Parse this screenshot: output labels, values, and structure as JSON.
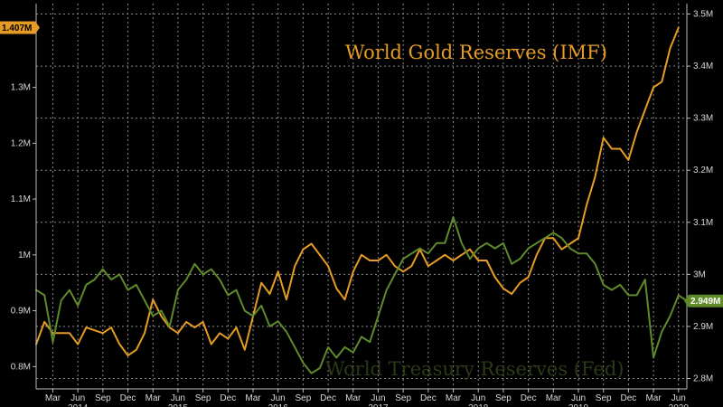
{
  "chart_data": {
    "type": "line",
    "x_ticks": [
      "Mar",
      "Jun",
      "Sep",
      "Dec",
      "Mar",
      "Jun",
      "Sep",
      "Dec",
      "Mar",
      "Jun",
      "Sep",
      "Dec",
      "Mar",
      "Jun",
      "Sep",
      "Dec",
      "Mar",
      "Jun",
      "Sep",
      "Dec",
      "Mar",
      "Jun",
      "Sep",
      "Dec",
      "Mar",
      "Jun"
    ],
    "x_year_labels": [
      "2014",
      "2015",
      "2016",
      "2017",
      "2018",
      "2019",
      "2020"
    ],
    "xlim": [
      "2014-01",
      "2020-07"
    ],
    "left_axis": {
      "ticks": [
        "0.8M",
        "0.9M",
        "1M",
        "1.1M",
        "1.2M",
        "1.3M"
      ],
      "tick_values": [
        0.8,
        0.9,
        1.0,
        1.1,
        1.2,
        1.3
      ],
      "ylim": [
        0.76,
        1.45
      ]
    },
    "right_axis": {
      "ticks": [
        "2.8M",
        "2.9M",
        "3M",
        "3.1M",
        "3.2M",
        "3.3M",
        "3.4M",
        "3.5M"
      ],
      "tick_values": [
        2.8,
        2.9,
        3.0,
        3.1,
        3.2,
        3.3,
        3.4,
        3.5
      ],
      "ylim": [
        2.78,
        3.52
      ]
    },
    "grid": true,
    "series": [
      {
        "name": "World Gold Reserves (IMF)",
        "axis": "left",
        "color": "#e69c24",
        "last_value_label": "1.407M",
        "points": [
          [
            "2014-01",
            0.84
          ],
          [
            "2014-02",
            0.88
          ],
          [
            "2014-03",
            0.86
          ],
          [
            "2014-05",
            0.86
          ],
          [
            "2014-06",
            0.84
          ],
          [
            "2014-07",
            0.87
          ],
          [
            "2014-09",
            0.86
          ],
          [
            "2014-10",
            0.87
          ],
          [
            "2014-11",
            0.84
          ],
          [
            "2014-12",
            0.82
          ],
          [
            "2015-01",
            0.83
          ],
          [
            "2015-02",
            0.86
          ],
          [
            "2015-03",
            0.92
          ],
          [
            "2015-04",
            0.89
          ],
          [
            "2015-05",
            0.87
          ],
          [
            "2015-06",
            0.86
          ],
          [
            "2015-07",
            0.88
          ],
          [
            "2015-08",
            0.87
          ],
          [
            "2015-09",
            0.88
          ],
          [
            "2015-10",
            0.84
          ],
          [
            "2015-11",
            0.86
          ],
          [
            "2015-12",
            0.85
          ],
          [
            "2016-01",
            0.87
          ],
          [
            "2016-02",
            0.83
          ],
          [
            "2016-03",
            0.89
          ],
          [
            "2016-04",
            0.95
          ],
          [
            "2016-05",
            0.93
          ],
          [
            "2016-06",
            0.97
          ],
          [
            "2016-07",
            0.92
          ],
          [
            "2016-08",
            0.98
          ],
          [
            "2016-09",
            1.01
          ],
          [
            "2016-10",
            1.02
          ],
          [
            "2016-11",
            1.0
          ],
          [
            "2016-12",
            0.98
          ],
          [
            "2017-01",
            0.94
          ],
          [
            "2017-02",
            0.92
          ],
          [
            "2017-03",
            0.97
          ],
          [
            "2017-04",
            1.0
          ],
          [
            "2017-05",
            0.99
          ],
          [
            "2017-06",
            0.99
          ],
          [
            "2017-07",
            1.0
          ],
          [
            "2017-08",
            0.98
          ],
          [
            "2017-09",
            0.97
          ],
          [
            "2017-10",
            0.98
          ],
          [
            "2017-11",
            1.01
          ],
          [
            "2017-12",
            0.98
          ],
          [
            "2018-01",
            0.99
          ],
          [
            "2018-02",
            1.0
          ],
          [
            "2018-03",
            0.99
          ],
          [
            "2018-04",
            1.0
          ],
          [
            "2018-05",
            1.01
          ],
          [
            "2018-06",
            0.99
          ],
          [
            "2018-07",
            0.99
          ],
          [
            "2018-08",
            0.96
          ],
          [
            "2018-09",
            0.94
          ],
          [
            "2018-10",
            0.93
          ],
          [
            "2018-11",
            0.95
          ],
          [
            "2018-12",
            0.96
          ],
          [
            "2019-01",
            1.0
          ],
          [
            "2019-02",
            1.03
          ],
          [
            "2019-03",
            1.03
          ],
          [
            "2019-04",
            1.01
          ],
          [
            "2019-05",
            1.02
          ],
          [
            "2019-06",
            1.03
          ],
          [
            "2019-07",
            1.09
          ],
          [
            "2019-08",
            1.14
          ],
          [
            "2019-09",
            1.21
          ],
          [
            "2019-10",
            1.19
          ],
          [
            "2019-11",
            1.19
          ],
          [
            "2019-12",
            1.17
          ],
          [
            "2020-01",
            1.22
          ],
          [
            "2020-02",
            1.26
          ],
          [
            "2020-03",
            1.3
          ],
          [
            "2020-04",
            1.31
          ],
          [
            "2020-05",
            1.37
          ],
          [
            "2020-06",
            1.407
          ]
        ]
      },
      {
        "name": "World Treasury Reserves (Fed)",
        "axis": "right",
        "color": "#5f8a2a",
        "last_value_label": "2.949M",
        "points": [
          [
            "2014-01",
            2.97
          ],
          [
            "2014-02",
            2.96
          ],
          [
            "2014-03",
            2.87
          ],
          [
            "2014-04",
            2.95
          ],
          [
            "2014-05",
            2.97
          ],
          [
            "2014-06",
            2.94
          ],
          [
            "2014-07",
            2.98
          ],
          [
            "2014-08",
            2.99
          ],
          [
            "2014-09",
            3.01
          ],
          [
            "2014-10",
            2.99
          ],
          [
            "2014-11",
            3.0
          ],
          [
            "2014-12",
            2.97
          ],
          [
            "2015-01",
            2.98
          ],
          [
            "2015-02",
            2.95
          ],
          [
            "2015-03",
            2.92
          ],
          [
            "2015-04",
            2.93
          ],
          [
            "2015-05",
            2.9
          ],
          [
            "2015-06",
            2.97
          ],
          [
            "2015-07",
            2.99
          ],
          [
            "2015-08",
            3.02
          ],
          [
            "2015-09",
            3.0
          ],
          [
            "2015-10",
            3.01
          ],
          [
            "2015-11",
            2.99
          ],
          [
            "2015-12",
            2.96
          ],
          [
            "2016-01",
            2.97
          ],
          [
            "2016-02",
            2.93
          ],
          [
            "2016-03",
            2.92
          ],
          [
            "2016-04",
            2.94
          ],
          [
            "2016-05",
            2.9
          ],
          [
            "2016-06",
            2.91
          ],
          [
            "2016-07",
            2.89
          ],
          [
            "2016-08",
            2.86
          ],
          [
            "2016-09",
            2.83
          ],
          [
            "2016-10",
            2.81
          ],
          [
            "2016-11",
            2.82
          ],
          [
            "2016-12",
            2.86
          ],
          [
            "2017-01",
            2.84
          ],
          [
            "2017-02",
            2.86
          ],
          [
            "2017-03",
            2.85
          ],
          [
            "2017-04",
            2.88
          ],
          [
            "2017-05",
            2.87
          ],
          [
            "2017-06",
            2.92
          ],
          [
            "2017-07",
            2.97
          ],
          [
            "2017-08",
            3.0
          ],
          [
            "2017-09",
            3.03
          ],
          [
            "2017-10",
            3.04
          ],
          [
            "2017-11",
            3.05
          ],
          [
            "2017-12",
            3.04
          ],
          [
            "2018-01",
            3.06
          ],
          [
            "2018-02",
            3.06
          ],
          [
            "2018-03",
            3.11
          ],
          [
            "2018-04",
            3.06
          ],
          [
            "2018-05",
            3.03
          ],
          [
            "2018-06",
            3.05
          ],
          [
            "2018-07",
            3.06
          ],
          [
            "2018-08",
            3.05
          ],
          [
            "2018-09",
            3.06
          ],
          [
            "2018-10",
            3.02
          ],
          [
            "2018-11",
            3.03
          ],
          [
            "2018-12",
            3.05
          ],
          [
            "2019-01",
            3.06
          ],
          [
            "2019-02",
            3.07
          ],
          [
            "2019-03",
            3.08
          ],
          [
            "2019-04",
            3.07
          ],
          [
            "2019-05",
            3.05
          ],
          [
            "2019-06",
            3.04
          ],
          [
            "2019-07",
            3.04
          ],
          [
            "2019-08",
            3.02
          ],
          [
            "2019-09",
            2.98
          ],
          [
            "2019-10",
            2.97
          ],
          [
            "2019-11",
            2.98
          ],
          [
            "2019-12",
            2.96
          ],
          [
            "2020-01",
            2.96
          ],
          [
            "2020-02",
            2.99
          ],
          [
            "2020-03",
            2.84
          ],
          [
            "2020-04",
            2.89
          ],
          [
            "2020-05",
            2.92
          ],
          [
            "2020-06",
            2.96
          ],
          [
            "2020-07",
            2.949
          ]
        ]
      }
    ]
  }
}
